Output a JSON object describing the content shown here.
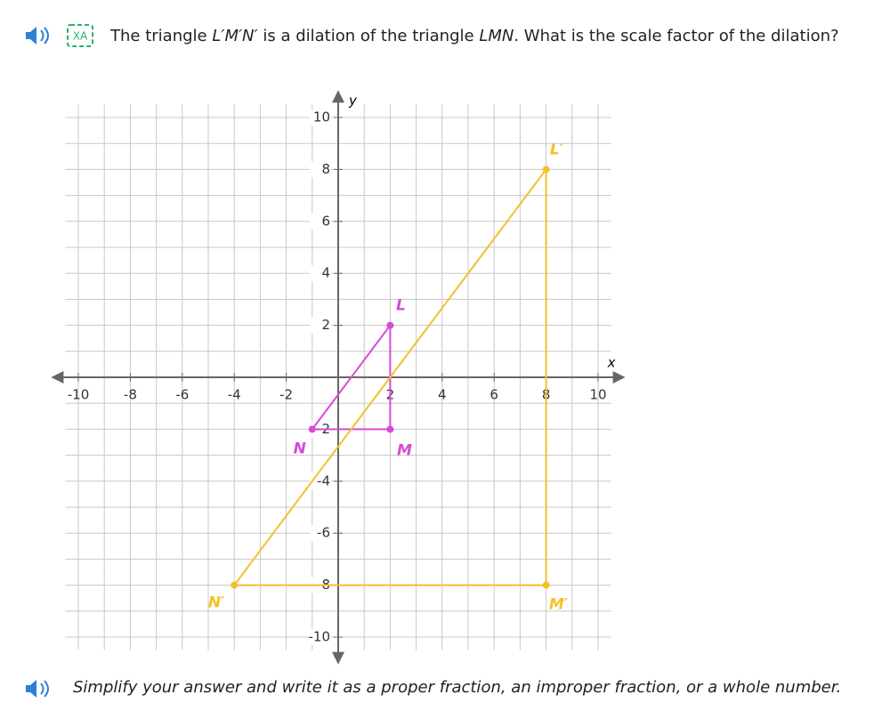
{
  "question": [
    "The triangle ",
    "L′M′N′",
    " is a dilation of the triangle ",
    "LMN",
    ". What is the scale factor of the dilation?"
  ],
  "chart_data": {
    "type": "polygon",
    "x_label": "x",
    "y_label": "y",
    "xlim": [
      -10.5,
      10.5
    ],
    "ylim": [
      -10.5,
      10.5
    ],
    "xticks": [
      -10,
      -8,
      -6,
      -4,
      -2,
      2,
      4,
      6,
      8,
      10
    ],
    "yticks": [
      -10,
      -8,
      -6,
      -4,
      -2,
      2,
      4,
      6,
      8,
      10
    ],
    "xgrid": [
      -10,
      -9,
      -8,
      -7,
      -6,
      -5,
      -4,
      -3,
      -2,
      -1,
      1,
      2,
      3,
      4,
      5,
      6,
      7,
      8,
      9,
      10
    ],
    "ygrid": [
      -10,
      -9,
      -8,
      -7,
      -6,
      -5,
      -4,
      -3,
      -2,
      -1,
      1,
      2,
      3,
      4,
      5,
      6,
      7,
      8,
      9,
      10
    ],
    "grid": true,
    "shapes": [
      {
        "color": "#d64ad8",
        "points": [
          {
            "label": "L",
            "x": 2,
            "y": 2
          },
          {
            "label": "M",
            "x": 2,
            "y": -2
          },
          {
            "label": "N",
            "x": -1,
            "y": -2
          }
        ]
      },
      {
        "color": "#f4c02c",
        "points": [
          {
            "label": "L′",
            "x": 8,
            "y": 8
          },
          {
            "label": "M′",
            "x": 8,
            "y": -8
          },
          {
            "label": "N′",
            "x": -4,
            "y": -8
          }
        ]
      }
    ]
  },
  "instruction": "Simplify your answer and write it as a proper fraction, an improper fraction, or a whole number."
}
